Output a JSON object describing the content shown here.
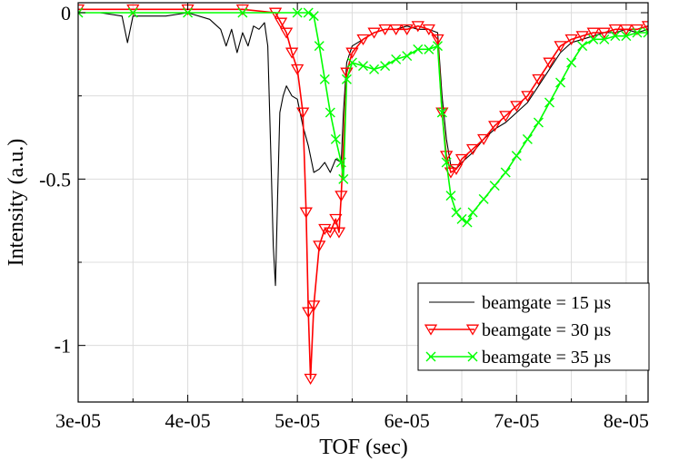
{
  "chart_data": {
    "type": "line",
    "title": "",
    "xlabel": "TOF (sec)",
    "ylabel": "Intensity (a.u.)",
    "xlim": [
      3e-05,
      8.2e-05
    ],
    "ylim": [
      -1.17,
      0.03
    ],
    "xticks": [
      3e-05,
      4e-05,
      5e-05,
      6e-05,
      7e-05,
      8e-05
    ],
    "xtick_labels": [
      "3e-05",
      "4e-05",
      "5e-05",
      "6e-05",
      "7e-05",
      "8e-05"
    ],
    "yticks": [
      0,
      -0.5,
      -1
    ],
    "ytick_labels": [
      "0",
      "-0.5",
      "-1"
    ],
    "grid": true,
    "legend_position": "bottom-right",
    "series": [
      {
        "name": "beamgate = 15 µs",
        "color": "#000000",
        "marker": "none",
        "x": [
          3e-05,
          3.2e-05,
          3.4e-05,
          3.45e-05,
          3.5e-05,
          3.8e-05,
          4e-05,
          4.2e-05,
          4.3e-05,
          4.35e-05,
          4.4e-05,
          4.45e-05,
          4.5e-05,
          4.55e-05,
          4.6e-05,
          4.65e-05,
          4.7e-05,
          4.73e-05,
          4.76e-05,
          4.78e-05,
          4.8e-05,
          4.82e-05,
          4.84e-05,
          4.87e-05,
          4.9e-05,
          4.95e-05,
          5e-05,
          5.05e-05,
          5.1e-05,
          5.15e-05,
          5.2e-05,
          5.25e-05,
          5.3e-05,
          5.35e-05,
          5.4e-05,
          5.42e-05,
          5.45e-05,
          5.5e-05,
          5.6e-05,
          5.7e-05,
          5.8e-05,
          5.9e-05,
          6e-05,
          6.1e-05,
          6.2e-05,
          6.28e-05,
          6.32e-05,
          6.36e-05,
          6.4e-05,
          6.45e-05,
          6.5e-05,
          6.6e-05,
          6.7e-05,
          6.8e-05,
          6.9e-05,
          7e-05,
          7.1e-05,
          7.2e-05,
          7.3e-05,
          7.4e-05,
          7.5e-05,
          7.6e-05,
          7.7e-05,
          7.8e-05,
          7.9e-05,
          8e-05,
          8.1e-05,
          8.2e-05
        ],
        "y": [
          0.0,
          0.0,
          -0.01,
          -0.09,
          -0.01,
          -0.01,
          0.0,
          -0.02,
          -0.05,
          -0.1,
          -0.05,
          -0.12,
          -0.06,
          -0.1,
          -0.04,
          -0.05,
          -0.03,
          -0.1,
          -0.45,
          -0.7,
          -0.82,
          -0.55,
          -0.3,
          -0.25,
          -0.22,
          -0.25,
          -0.26,
          -0.34,
          -0.4,
          -0.48,
          -0.47,
          -0.45,
          -0.48,
          -0.44,
          -0.45,
          -0.3,
          -0.15,
          -0.1,
          -0.08,
          -0.06,
          -0.05,
          -0.05,
          -0.04,
          -0.05,
          -0.05,
          -0.06,
          -0.25,
          -0.38,
          -0.46,
          -0.47,
          -0.45,
          -0.42,
          -0.38,
          -0.35,
          -0.33,
          -0.3,
          -0.27,
          -0.22,
          -0.17,
          -0.12,
          -0.09,
          -0.08,
          -0.07,
          -0.06,
          -0.06,
          -0.05,
          -0.06,
          -0.05
        ]
      },
      {
        "name": "beamgate = 30 µs",
        "color": "#ff0000",
        "marker": "triangle-down",
        "x": [
          3e-05,
          3.5e-05,
          4e-05,
          4.5e-05,
          4.8e-05,
          4.85e-05,
          4.9e-05,
          4.95e-05,
          5e-05,
          5.05e-05,
          5.08e-05,
          5.1e-05,
          5.12e-05,
          5.15e-05,
          5.2e-05,
          5.25e-05,
          5.3e-05,
          5.35e-05,
          5.38e-05,
          5.4e-05,
          5.45e-05,
          5.5e-05,
          5.6e-05,
          5.7e-05,
          5.8e-05,
          5.9e-05,
          6e-05,
          6.1e-05,
          6.2e-05,
          6.28e-05,
          6.32e-05,
          6.36e-05,
          6.4e-05,
          6.45e-05,
          6.5e-05,
          6.6e-05,
          6.7e-05,
          6.8e-05,
          6.9e-05,
          7e-05,
          7.1e-05,
          7.2e-05,
          7.3e-05,
          7.4e-05,
          7.5e-05,
          7.6e-05,
          7.7e-05,
          7.8e-05,
          7.9e-05,
          8e-05,
          8.1e-05,
          8.2e-05
        ],
        "y": [
          0.01,
          0.01,
          0.01,
          0.01,
          0.0,
          -0.03,
          -0.06,
          -0.12,
          -0.17,
          -0.3,
          -0.6,
          -0.9,
          -1.1,
          -0.88,
          -0.7,
          -0.65,
          -0.66,
          -0.62,
          -0.66,
          -0.55,
          -0.18,
          -0.12,
          -0.08,
          -0.06,
          -0.05,
          -0.05,
          -0.05,
          -0.04,
          -0.05,
          -0.08,
          -0.3,
          -0.43,
          -0.48,
          -0.47,
          -0.44,
          -0.41,
          -0.38,
          -0.34,
          -0.31,
          -0.28,
          -0.25,
          -0.2,
          -0.15,
          -0.1,
          -0.08,
          -0.07,
          -0.06,
          -0.06,
          -0.05,
          -0.05,
          -0.05,
          -0.04
        ]
      },
      {
        "name": "beamgate = 35 µs",
        "color": "#00ff00",
        "marker": "x",
        "x": [
          3e-05,
          3.5e-05,
          4e-05,
          4.5e-05,
          5e-05,
          5.1e-05,
          5.15e-05,
          5.2e-05,
          5.25e-05,
          5.3e-05,
          5.35e-05,
          5.4e-05,
          5.42e-05,
          5.45e-05,
          5.5e-05,
          5.6e-05,
          5.7e-05,
          5.8e-05,
          5.9e-05,
          6e-05,
          6.1e-05,
          6.2e-05,
          6.28e-05,
          6.32e-05,
          6.36e-05,
          6.4e-05,
          6.45e-05,
          6.5e-05,
          6.55e-05,
          6.6e-05,
          6.7e-05,
          6.8e-05,
          6.9e-05,
          7e-05,
          7.1e-05,
          7.2e-05,
          7.3e-05,
          7.4e-05,
          7.5e-05,
          7.6e-05,
          7.7e-05,
          7.8e-05,
          7.9e-05,
          8e-05,
          8.1e-05,
          8.2e-05
        ],
        "y": [
          0.0,
          0.0,
          0.0,
          0.0,
          0.0,
          0.0,
          -0.01,
          -0.1,
          -0.2,
          -0.3,
          -0.38,
          -0.45,
          -0.5,
          -0.2,
          -0.15,
          -0.16,
          -0.17,
          -0.16,
          -0.14,
          -0.13,
          -0.11,
          -0.11,
          -0.1,
          -0.3,
          -0.45,
          -0.55,
          -0.6,
          -0.62,
          -0.63,
          -0.6,
          -0.56,
          -0.52,
          -0.48,
          -0.43,
          -0.38,
          -0.33,
          -0.27,
          -0.21,
          -0.15,
          -0.1,
          -0.08,
          -0.08,
          -0.07,
          -0.07,
          -0.06,
          -0.06
        ]
      }
    ]
  }
}
